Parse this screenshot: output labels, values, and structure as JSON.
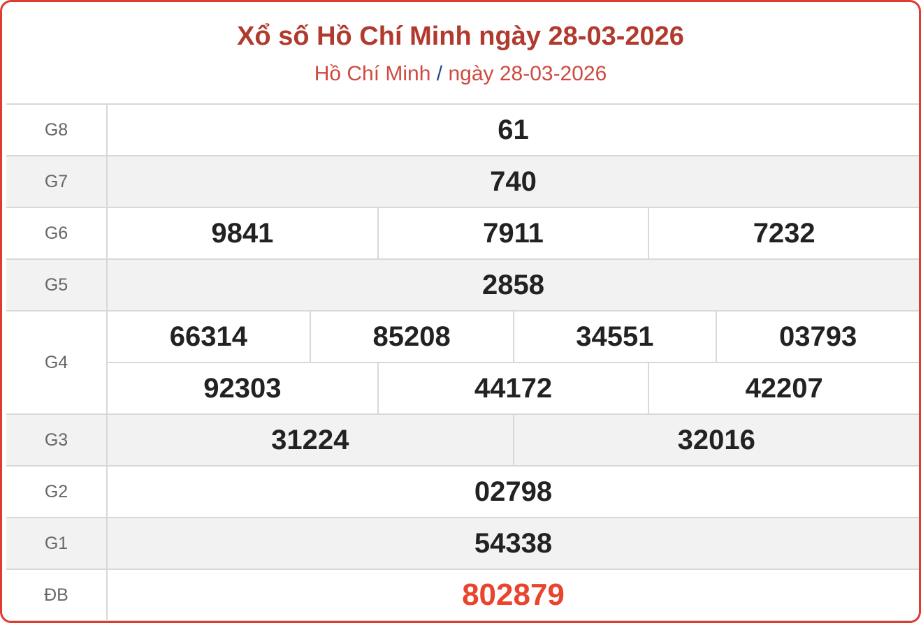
{
  "header": {
    "title": "Xổ số Hồ Chí Minh ngày 28-03-2026",
    "breadcrumb": {
      "province": "Hồ Chí Minh",
      "separator": "/",
      "date": "ngày 28-03-2026"
    }
  },
  "colors": {
    "border": "#e03a33",
    "title": "#b13a2f",
    "special": "#e8442e",
    "separator": "#1f4e8c"
  },
  "prizes": [
    {
      "label": "G8",
      "rows": [
        [
          "61"
        ]
      ]
    },
    {
      "label": "G7",
      "rows": [
        [
          "740"
        ]
      ]
    },
    {
      "label": "G6",
      "rows": [
        [
          "9841",
          "7911",
          "7232"
        ]
      ]
    },
    {
      "label": "G5",
      "rows": [
        [
          "2858"
        ]
      ]
    },
    {
      "label": "G4",
      "rows": [
        [
          "66314",
          "85208",
          "34551",
          "03793"
        ],
        [
          "92303",
          "44172",
          "42207"
        ]
      ]
    },
    {
      "label": "G3",
      "rows": [
        [
          "31224",
          "32016"
        ]
      ]
    },
    {
      "label": "G2",
      "rows": [
        [
          "02798"
        ]
      ]
    },
    {
      "label": "G1",
      "rows": [
        [
          "54338"
        ]
      ]
    },
    {
      "label": "ĐB",
      "rows": [
        [
          "802879"
        ]
      ],
      "special": true
    }
  ]
}
